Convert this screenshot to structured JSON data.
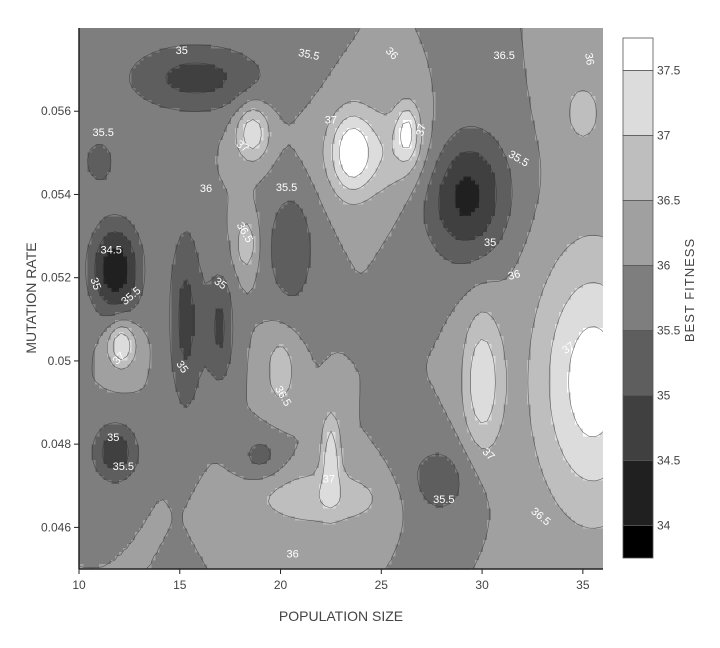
{
  "chart_data": {
    "type": "contour",
    "xlabel": "POPULATION SIZE",
    "ylabel": "MUTATION RATE",
    "xlim": [
      10,
      36
    ],
    "ylim": [
      0.045,
      0.058
    ],
    "x_ticks": [
      10,
      15,
      20,
      25,
      30,
      35
    ],
    "x_tick_labels": [
      "10",
      "15",
      "20",
      "25",
      "30",
      "35"
    ],
    "y_ticks": [
      0.046,
      0.048,
      0.05,
      0.052,
      0.054,
      0.056
    ],
    "y_tick_labels": [
      "0.046",
      "0.048",
      "0.05",
      "0.052",
      "0.054",
      "0.056"
    ],
    "colorbar": {
      "title": "BEST FITNESS",
      "levels": [
        33.75,
        34,
        34.5,
        35,
        35.5,
        36,
        36.5,
        37,
        37.5,
        37.75
      ],
      "tick_values": [
        34,
        34.5,
        35,
        35.5,
        36,
        36.5,
        37,
        37.5
      ],
      "tick_labels": [
        "34",
        "34.5",
        "35",
        "35.5",
        "36",
        "36.5",
        "37",
        "37.5"
      ],
      "colors": [
        "#000000",
        "#202020",
        "#404040",
        "#5e5e5e",
        "#7e7e7e",
        "#a0a0a0",
        "#bebebe",
        "#dcdcdc",
        "#ffffff"
      ]
    },
    "field": {
      "base": 36,
      "features": [
        {
          "x": 11.8,
          "y": 0.0522,
          "amp": -1.9,
          "sx": 0.9,
          "sy": 0.0008
        },
        {
          "x": 11.0,
          "y": 0.0548,
          "amp": -0.7,
          "sx": 0.7,
          "sy": 0.0005
        },
        {
          "x": 11.8,
          "y": 0.0478,
          "amp": -1.4,
          "sx": 0.8,
          "sy": 0.0005
        },
        {
          "x": 15.3,
          "y": 0.051,
          "amp": -1.2,
          "sx": 0.6,
          "sy": 0.0016
        },
        {
          "x": 17.0,
          "y": 0.0508,
          "amp": -1.1,
          "sx": 0.5,
          "sy": 0.001
        },
        {
          "x": 15.8,
          "y": 0.0568,
          "amp": -1.2,
          "sx": 2.5,
          "sy": 0.0006
        },
        {
          "x": 20.5,
          "y": 0.0527,
          "amp": -0.9,
          "sx": 0.9,
          "sy": 0.0011
        },
        {
          "x": 19.0,
          "y": 0.0477,
          "amp": -0.7,
          "sx": 0.8,
          "sy": 0.0004
        },
        {
          "x": 27.8,
          "y": 0.0471,
          "amp": -0.8,
          "sx": 1.3,
          "sy": 0.0007
        },
        {
          "x": 29.2,
          "y": 0.054,
          "amp": -1.7,
          "sx": 1.5,
          "sy": 0.0011
        },
        {
          "x": 12.1,
          "y": 0.0504,
          "amp": 1.6,
          "sx": 0.5,
          "sy": 0.0004
        },
        {
          "x": 18.6,
          "y": 0.0555,
          "amp": 1.4,
          "sx": 0.6,
          "sy": 0.0005
        },
        {
          "x": 23.5,
          "y": 0.055,
          "amp": 1.4,
          "sx": 0.7,
          "sy": 0.0007
        },
        {
          "x": 26.3,
          "y": 0.0555,
          "amp": 1.3,
          "sx": 0.4,
          "sy": 0.0005
        },
        {
          "x": 22.5,
          "y": 0.0478,
          "amp": 1.3,
          "sx": 0.35,
          "sy": 0.0007
        },
        {
          "x": 30.0,
          "y": 0.0495,
          "amp": 1.4,
          "sx": 0.7,
          "sy": 0.0012
        },
        {
          "x": 35.5,
          "y": 0.0495,
          "amp": 1.8,
          "sx": 2.0,
          "sy": 0.0022
        },
        {
          "x": 18.3,
          "y": 0.0528,
          "amp": 0.9,
          "sx": 0.4,
          "sy": 0.0005
        },
        {
          "x": 20.0,
          "y": 0.0498,
          "amp": 0.8,
          "sx": 0.6,
          "sy": 0.0007
        },
        {
          "x": 22.0,
          "y": 0.0467,
          "amp": 0.9,
          "sx": 2.5,
          "sy": 0.0005
        },
        {
          "x": 35.0,
          "y": 0.056,
          "amp": 0.6,
          "sx": 1.0,
          "sy": 0.0008
        },
        {
          "x": 25.0,
          "y": 0.055,
          "amp": 0.9,
          "sx": 2.0,
          "sy": 0.0008
        }
      ]
    },
    "contour_labels": [
      {
        "text": "35",
        "x": 15.1,
        "y": 0.05745,
        "rotate": 0
      },
      {
        "text": "35.5",
        "x": 21.4,
        "y": 0.05735,
        "rotate": 12
      },
      {
        "text": "36",
        "x": 25.5,
        "y": 0.05738,
        "rotate": 45
      },
      {
        "text": "36.5",
        "x": 31.1,
        "y": 0.05732,
        "rotate": 0
      },
      {
        "text": "36",
        "x": 35.3,
        "y": 0.05725,
        "rotate": 80
      },
      {
        "text": "35.5",
        "x": 11.2,
        "y": 0.05548,
        "rotate": 0
      },
      {
        "text": "37",
        "x": 22.5,
        "y": 0.05578,
        "rotate": 0
      },
      {
        "text": "37",
        "x": 27.0,
        "y": 0.05555,
        "rotate": -75
      },
      {
        "text": "37",
        "x": 18.1,
        "y": 0.05515,
        "rotate": 35
      },
      {
        "text": "35.5",
        "x": 31.8,
        "y": 0.05485,
        "rotate": 30
      },
      {
        "text": "36",
        "x": 16.3,
        "y": 0.05413,
        "rotate": 0
      },
      {
        "text": "35.5",
        "x": 20.3,
        "y": 0.05415,
        "rotate": 0
      },
      {
        "text": "36.5",
        "x": 18.2,
        "y": 0.05308,
        "rotate": 60
      },
      {
        "text": "35",
        "x": 30.4,
        "y": 0.05283,
        "rotate": 0
      },
      {
        "text": "34.5",
        "x": 11.6,
        "y": 0.05265,
        "rotate": 0
      },
      {
        "text": "36",
        "x": 31.6,
        "y": 0.05205,
        "rotate": -15
      },
      {
        "text": "35",
        "x": 10.8,
        "y": 0.05185,
        "rotate": 70
      },
      {
        "text": "35",
        "x": 17.0,
        "y": 0.05185,
        "rotate": 35
      },
      {
        "text": "35.5",
        "x": 12.6,
        "y": 0.05155,
        "rotate": -40
      },
      {
        "text": "37",
        "x": 34.3,
        "y": 0.0503,
        "rotate": -35
      },
      {
        "text": "37",
        "x": 12.0,
        "y": 0.05005,
        "rotate": -45
      },
      {
        "text": "35",
        "x": 15.1,
        "y": 0.04985,
        "rotate": 55
      },
      {
        "text": "36.5",
        "x": 20.1,
        "y": 0.04915,
        "rotate": 60
      },
      {
        "text": "35",
        "x": 11.7,
        "y": 0.04815,
        "rotate": 0
      },
      {
        "text": "37",
        "x": 30.3,
        "y": 0.04775,
        "rotate": 45
      },
      {
        "text": "35.5",
        "x": 12.2,
        "y": 0.04745,
        "rotate": 0
      },
      {
        "text": "37",
        "x": 22.4,
        "y": 0.04715,
        "rotate": 0
      },
      {
        "text": "35.5",
        "x": 28.1,
        "y": 0.04665,
        "rotate": 0
      },
      {
        "text": "36.5",
        "x": 32.9,
        "y": 0.04625,
        "rotate": 40
      },
      {
        "text": "36",
        "x": 20.6,
        "y": 0.04535,
        "rotate": 0
      }
    ]
  }
}
